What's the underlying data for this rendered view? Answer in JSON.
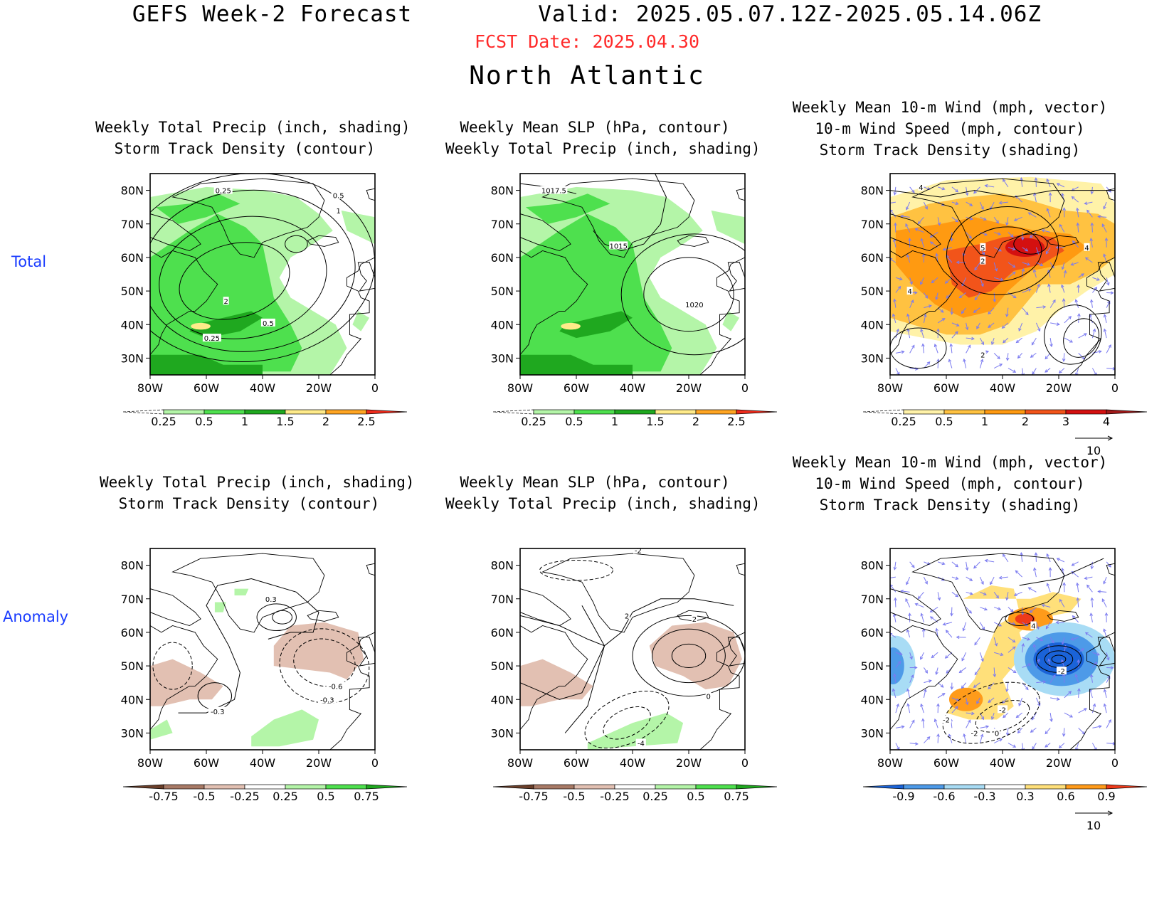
{
  "header": {
    "title_left": "GEFS Week-2 Forecast",
    "title_right": "Valid: 2025.05.07.12Z-2025.05.14.06Z",
    "fcst_date": "FCST Date: 2025.04.30",
    "region": "North Atlantic"
  },
  "rows": [
    {
      "label": "Total"
    },
    {
      "label": "Anomaly"
    }
  ],
  "axes": {
    "lat_labels": [
      "80N",
      "70N",
      "60N",
      "50N",
      "40N",
      "30N"
    ],
    "lon_labels": [
      "80W",
      "60W",
      "40W",
      "20W",
      "0"
    ]
  },
  "panels": [
    {
      "id": "total-precip",
      "title": [
        "Weekly Total Precip (inch, shading)",
        "Storm Track Density (contour)"
      ],
      "contour_labels": [
        "0.25",
        "0.5",
        "1",
        "2",
        "0.5",
        "0.25"
      ],
      "colorbar": {
        "labels": [
          "0.25",
          "0.5",
          "1",
          "1.5",
          "2",
          "2.5"
        ],
        "colors": [
          "#ffffff",
          "#b4f5a8",
          "#4ee04e",
          "#1fa81f",
          "#ffeb8a",
          "#ffa522",
          "#ee2a1a"
        ]
      }
    },
    {
      "id": "total-slp",
      "title": [
        "Weekly Mean SLP (hPa, contour)",
        "Weekly Total Precip (inch, shading)"
      ],
      "contour_labels": [
        "1017.5",
        "1015",
        "1020"
      ],
      "colorbar": {
        "labels": [
          "0.25",
          "0.5",
          "1",
          "1.5",
          "2",
          "2.5"
        ],
        "colors": [
          "#ffffff",
          "#b4f5a8",
          "#4ee04e",
          "#1fa81f",
          "#ffeb8a",
          "#ffa522",
          "#ee2a1a"
        ]
      }
    },
    {
      "id": "total-wind",
      "title": [
        "Weekly Mean 10-m Wind (mph, vector)",
        "10-m Wind Speed (mph, contour)",
        "Storm Track Density (shading)"
      ],
      "contour_labels": [
        "4",
        "5",
        "2",
        "4",
        "4",
        "2"
      ],
      "colorbar": {
        "labels": [
          "0.25",
          "0.5",
          "1",
          "2",
          "3",
          "4"
        ],
        "colors": [
          "#ffffff",
          "#fff2a8",
          "#ffc241",
          "#ff9a11",
          "#f2541a",
          "#d41010",
          "#a01818"
        ]
      },
      "vector_ref": "10"
    },
    {
      "id": "anom-precip",
      "title": [
        "Weekly Total Precip (inch, shading)",
        "Storm Track Density (contour)"
      ],
      "contour_labels": [
        "0.3",
        "-0.6",
        "-0.3",
        "-0.3"
      ],
      "colorbar": {
        "labels": [
          "-0.75",
          "-0.5",
          "-0.25",
          "0.25",
          "0.5",
          "0.75"
        ],
        "colors": [
          "#6b3f2a",
          "#a87a66",
          "#e2c0b2",
          "#ffffff",
          "#b4f5a8",
          "#4ee04e",
          "#1fa81f"
        ]
      }
    },
    {
      "id": "anom-slp",
      "title": [
        "Weekly Mean SLP (hPa, contour)",
        "Weekly Total Precip (inch, shading)"
      ],
      "contour_labels": [
        "-2",
        "2",
        "2",
        "0",
        "-4"
      ],
      "colorbar": {
        "labels": [
          "-0.75",
          "-0.5",
          "-0.25",
          "0.25",
          "0.5",
          "0.75"
        ],
        "colors": [
          "#6b3f2a",
          "#a87a66",
          "#e2c0b2",
          "#ffffff",
          "#b4f5a8",
          "#4ee04e",
          "#1fa81f"
        ]
      }
    },
    {
      "id": "anom-wind",
      "title": [
        "Weekly Mean 10-m Wind (mph, vector)",
        "10-m Wind Speed (mph, contour)",
        "Storm Track Density (shading)"
      ],
      "contour_labels": [
        "4",
        "-2",
        "-2",
        "0",
        "-2",
        "-2"
      ],
      "colorbar": {
        "labels": [
          "-0.9",
          "-0.6",
          "-0.3",
          "0.3",
          "0.6",
          "0.9"
        ],
        "colors": [
          "#1a63d8",
          "#4d9ae8",
          "#a8dcf5",
          "#ffffff",
          "#ffe07a",
          "#ff9b1a",
          "#ee3a1a"
        ]
      },
      "vector_ref": "10"
    }
  ]
}
